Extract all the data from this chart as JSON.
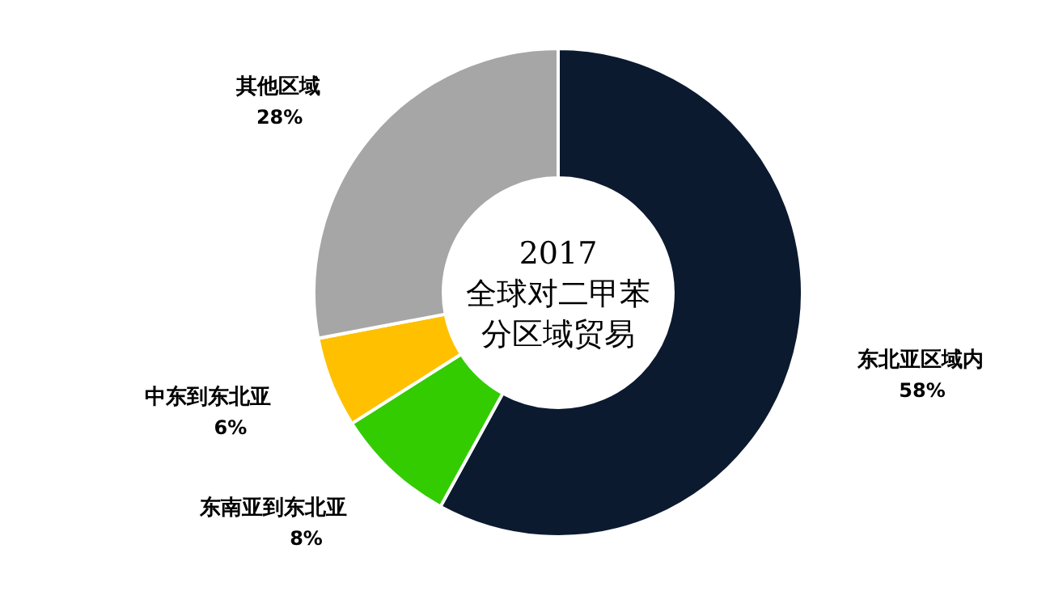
{
  "chart_data": {
    "type": "donut",
    "title": "2017",
    "subtitle": "全球对二甲苯分区域贸易",
    "categories": [
      "东北亚区域内",
      "东南亚到东北亚",
      "中东到东北亚",
      "其他区域"
    ],
    "values": [
      58,
      8,
      6,
      28
    ],
    "value_labels": [
      "58%",
      "8%",
      "6%",
      "28%"
    ],
    "colors": [
      "#0c1a30",
      "#33cc00",
      "#ffc000",
      "#a6a6a6"
    ]
  }
}
